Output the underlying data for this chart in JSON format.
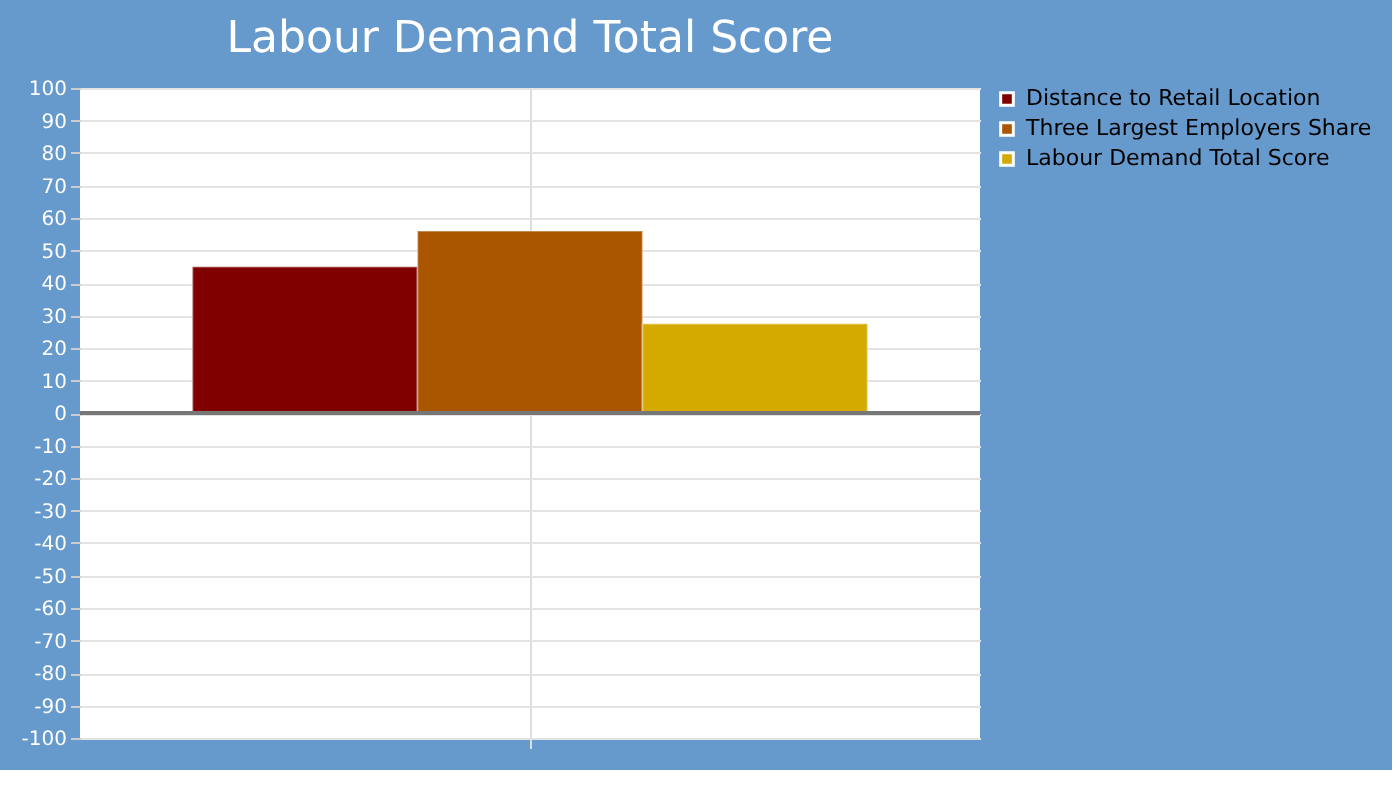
{
  "chart_data": {
    "type": "bar",
    "title": "Labour Demand Total Score",
    "categories": [
      null
    ],
    "series": [
      {
        "name": "Distance to Retail Location",
        "color": "#800000",
        "values": [
          45
        ]
      },
      {
        "name": "Three Largest Employers Share",
        "color": "#aa5500",
        "values": [
          56
        ]
      },
      {
        "name": "Labour Demand Total Score",
        "color": "#d4aa00",
        "values": [
          27.5
        ]
      }
    ],
    "ylim": [
      -100,
      100
    ],
    "yticks": [
      -100,
      -90,
      -80,
      -70,
      -60,
      -50,
      -40,
      -30,
      -20,
      -10,
      0,
      10,
      20,
      30,
      40,
      50,
      60,
      70,
      80,
      90,
      100
    ],
    "grid": true,
    "legend": "right",
    "tick_labels": "y"
  }
}
